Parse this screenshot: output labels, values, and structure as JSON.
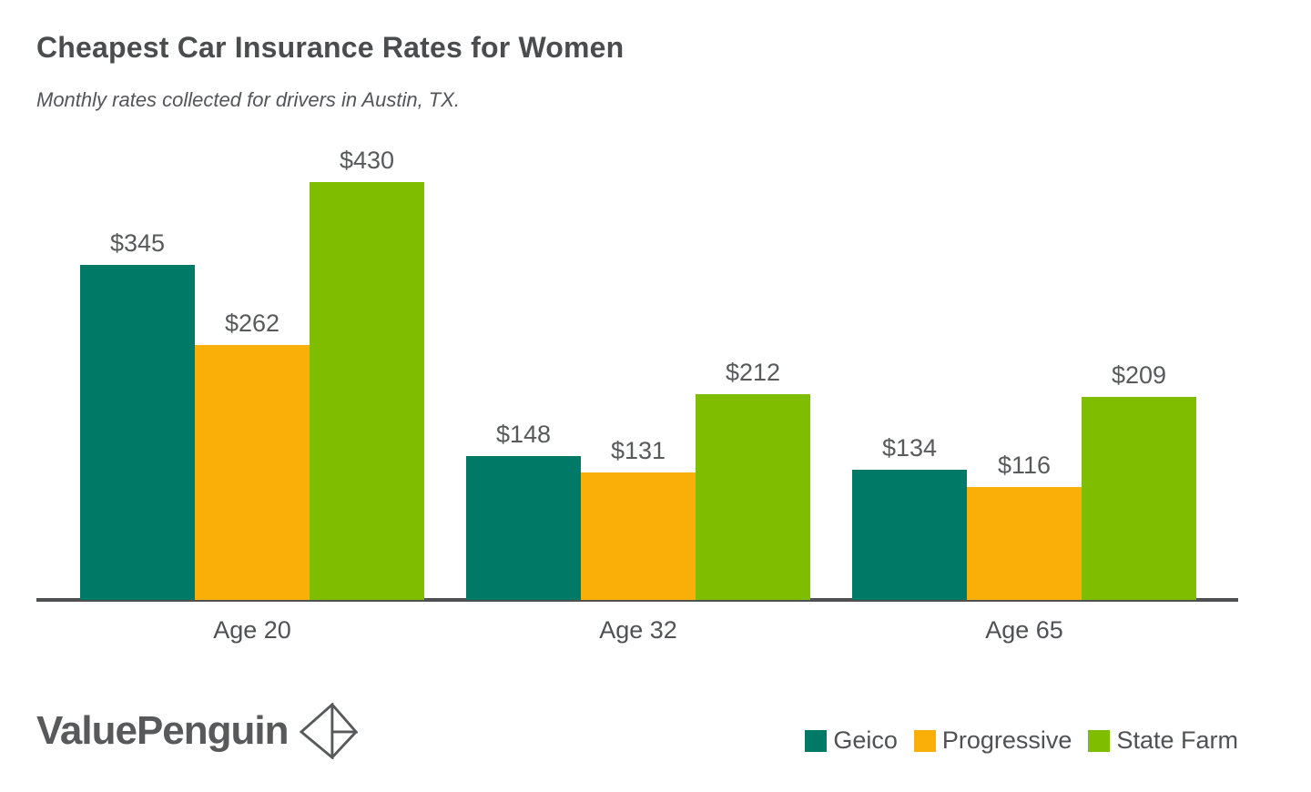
{
  "header": {
    "title": "Cheapest Car Insurance Rates for Women",
    "subtitle": "Monthly rates collected for drivers in Austin, TX."
  },
  "chart_data": {
    "type": "bar",
    "categories": [
      "Age 20",
      "Age 32",
      "Age 65"
    ],
    "series": [
      {
        "name": "Geico",
        "color": "#007a67",
        "values": [
          345,
          148,
          134
        ]
      },
      {
        "name": "Progressive",
        "color": "#f9af08",
        "values": [
          262,
          131,
          116
        ]
      },
      {
        "name": "State Farm",
        "color": "#7fbd00",
        "values": [
          430,
          212,
          209
        ]
      }
    ],
    "value_prefix": "$",
    "ylim": [
      0,
      430
    ],
    "grid": false,
    "legend_position": "bottom-right",
    "axis_color": "#4f5052",
    "label_color": "#58595b",
    "xlabel": "",
    "ylabel": ""
  },
  "branding": {
    "logo_text": "ValuePenguin",
    "logo_icon": "origami-penguin-icon"
  }
}
